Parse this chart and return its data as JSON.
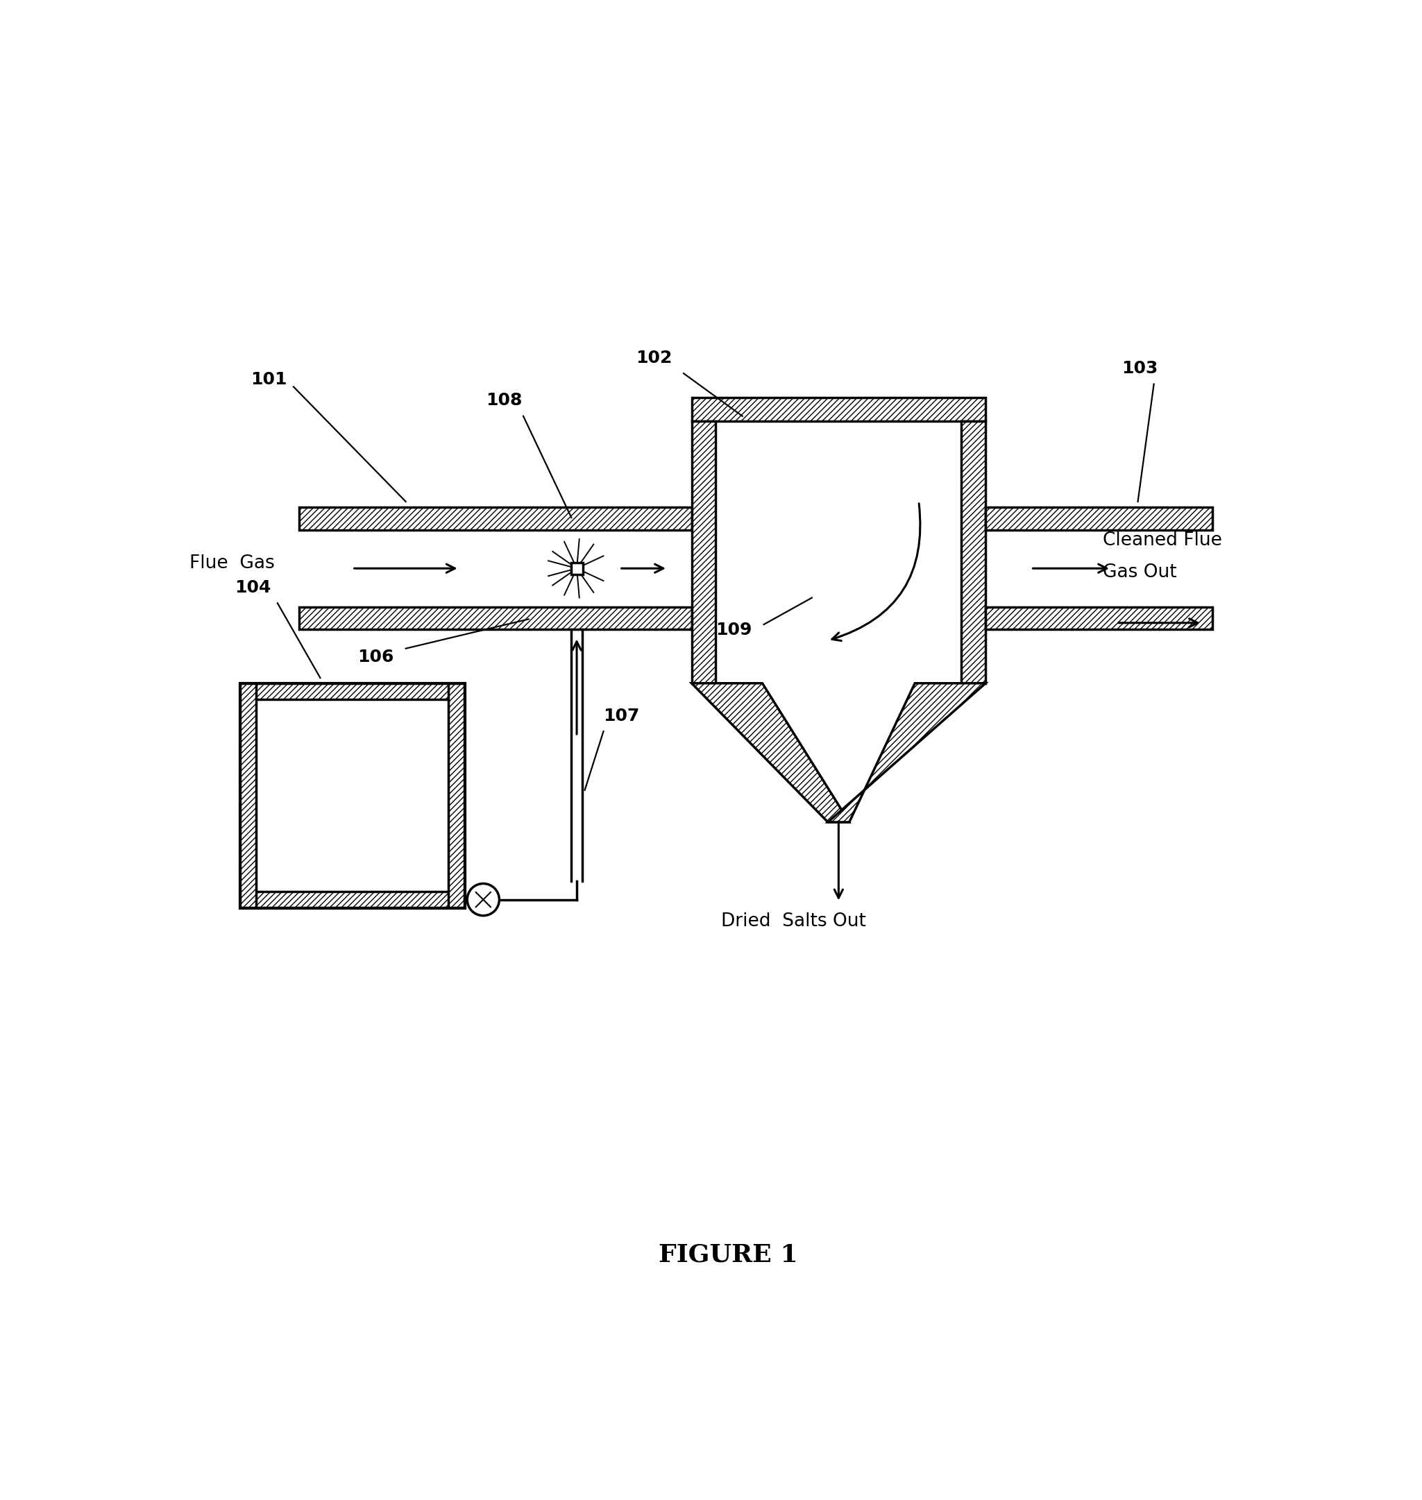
{
  "title": "FIGURE 1",
  "fig_width": 20.49,
  "fig_height": 21.62,
  "bg_color": "#ffffff",
  "hatch_pattern": "////",
  "label_101": "101",
  "label_102": "102",
  "label_103": "103",
  "label_104": "104",
  "label_106": "106",
  "label_107": "107",
  "label_108": "108",
  "label_109": "109",
  "text_flue_gas": "Flue  Gas",
  "text_cleaned_1": "Cleaned Flue",
  "text_cleaned_2": "Gas Out",
  "text_dried": "Dried  Salts Out",
  "line_color": "#000000",
  "font_size_labels": 18,
  "font_size_title": 26,
  "font_size_text": 19
}
